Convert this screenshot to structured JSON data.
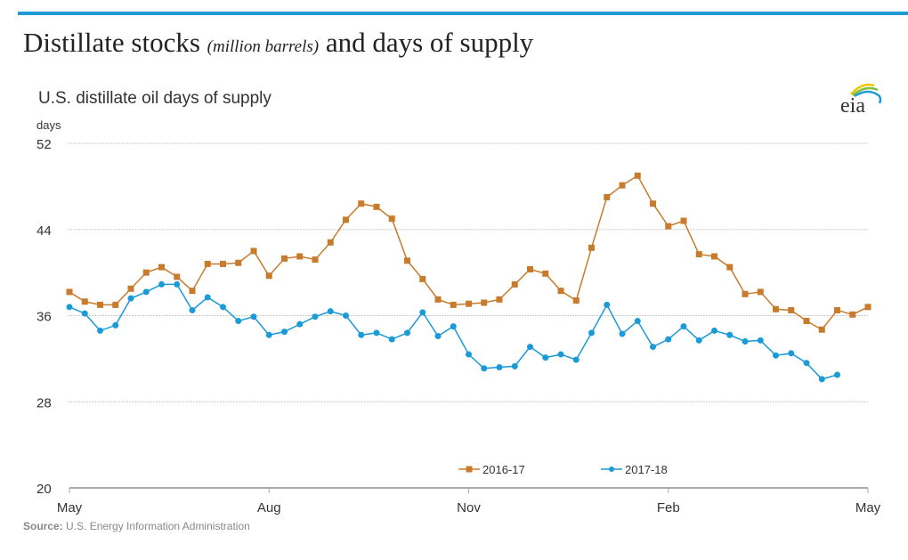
{
  "header": {
    "title_main": "Distillate stocks",
    "title_unit": "(million barrels)",
    "title_rest": "and days of supply"
  },
  "logo": {
    "text": "eia"
  },
  "source": {
    "label": "Source:",
    "text": "U.S. Energy Information Administration"
  },
  "colors": {
    "topbar": "#1f9ad6",
    "series_2016": "#c87b2c",
    "series_2017": "#1a9ad6",
    "grid": "#cccccc"
  },
  "chart_data": {
    "type": "line",
    "title": "U.S. distillate oil days of supply",
    "ylabel": "days",
    "xlabel": "",
    "ylim": [
      20,
      52
    ],
    "yticks": [
      20,
      28,
      36,
      44,
      52
    ],
    "xticks": [
      "May",
      "Aug",
      "Nov",
      "Feb",
      "May"
    ],
    "x_unit": "week index (0 = May, 52 = following May)",
    "xlim": [
      0,
      52
    ],
    "xtick_positions": [
      0,
      13,
      26,
      39,
      52
    ],
    "grid": true,
    "legend": "bottom-center",
    "series": [
      {
        "name": "2016-17",
        "marker": "square",
        "values": [
          38.2,
          37.3,
          37.0,
          37.0,
          38.5,
          40.0,
          40.5,
          39.6,
          38.3,
          40.8,
          40.8,
          40.9,
          42.0,
          39.7,
          41.3,
          41.5,
          41.2,
          42.8,
          44.9,
          46.4,
          46.1,
          45.0,
          41.1,
          39.4,
          37.5,
          37.0,
          37.1,
          37.2,
          37.5,
          38.9,
          40.3,
          39.9,
          38.3,
          37.4,
          42.3,
          47.0,
          48.1,
          49.0,
          46.4,
          44.3,
          44.8,
          41.7,
          41.5,
          40.5,
          38.0,
          38.2,
          36.6,
          36.5,
          35.5,
          34.7,
          36.5,
          36.1,
          36.8
        ]
      },
      {
        "name": "2017-18",
        "marker": "circle",
        "values": [
          36.8,
          36.2,
          34.6,
          35.1,
          37.6,
          38.2,
          38.9,
          38.9,
          36.5,
          37.7,
          36.8,
          35.5,
          35.9,
          34.2,
          34.5,
          35.2,
          35.9,
          36.4,
          36.0,
          34.2,
          34.4,
          33.8,
          34.4,
          36.3,
          34.1,
          35.0,
          32.4,
          31.1,
          31.2,
          31.3,
          33.1,
          32.1,
          32.4,
          31.9,
          34.4,
          37.0,
          34.3,
          35.5,
          33.1,
          33.8,
          35.0,
          33.7,
          34.6,
          34.2,
          33.6,
          33.7,
          32.3,
          32.5,
          31.6,
          30.1,
          30.5
        ]
      }
    ]
  }
}
